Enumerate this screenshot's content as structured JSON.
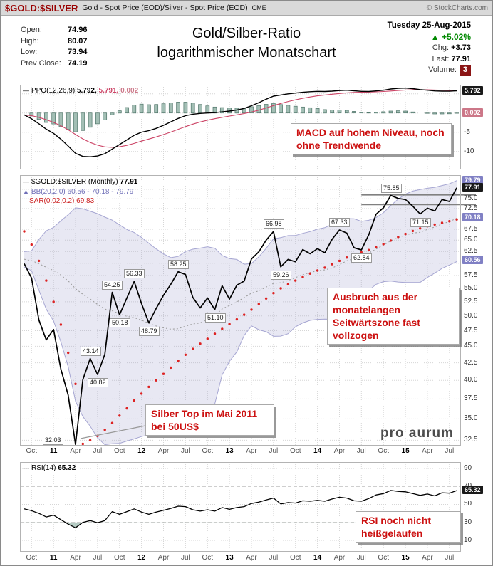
{
  "header": {
    "symbol": "$GOLD:$SILVER",
    "description": "Gold - Spot Price (EOD)/Silver - Spot Price (EOD)",
    "exchange": "CME",
    "copyright": "© StockCharts.com"
  },
  "title": {
    "line1": "Gold/Silber-Ratio",
    "line2": "logarithmischer Monatschart"
  },
  "quote": {
    "date": "Tuesday 25-Aug-2015",
    "open_label": "Open:",
    "open": "74.96",
    "high_label": "High:",
    "high": "80.07",
    "low_label": "Low:",
    "low": "73.94",
    "prev_close_label": "Prev Close:",
    "prev_close": "74.19",
    "pct_change": "+5.02%",
    "chg_label": "Chg:",
    "chg": "+3.73",
    "last_label": "Last:",
    "last": "77.91",
    "volume_label": "Volume:",
    "volume": "3"
  },
  "legends": {
    "ppo": {
      "name": "PPO(12,26,9)",
      "v1": "5.792,",
      "v2": "5.791,",
      "v3": "0.002"
    },
    "price": {
      "name": "$GOLD:$SILVER (Monthly)",
      "value": "77.91"
    },
    "bb": "BB(20,2.0) 60.56 - 70.18 - 79.79",
    "sar": "SAR(0.02,0.2) 69.83",
    "rsi": {
      "name": "RSI(14)",
      "value": "65.32"
    }
  },
  "annotations": {
    "macd": "MACD auf hohem Niveau, noch ohne Trendwende",
    "breakout": "Ausbruch aus der monatelangen Seitwärtszone fast vollzogen",
    "silver_top": "Silber Top im Mai 2011 bei 50US$",
    "rsi": "RSI noch nicht heißgelaufen"
  },
  "logo": "pro aurum",
  "icons": {
    "up_triangle": "▲",
    "legend_dash": "—",
    "bb_triangle": "▲",
    "sar_dots": "··"
  },
  "colors": {
    "symbol": "#990000",
    "gain_green": "#008800",
    "annotation_red": "#cc1111",
    "signal_line": "#cc4466",
    "histogram_fill": "#a3bfb5",
    "histogram_stroke": "#4e7468",
    "bollinger_fill": "#9595c8",
    "bollinger_edge": "#a6a6d2",
    "sar_dots": "#dd2222",
    "resistance_gray": "#808080"
  },
  "chart_data": {
    "type": "multi-panel-financial",
    "x_axis": {
      "ticks": [
        {
          "i": 1,
          "label": "Oct"
        },
        {
          "i": 4,
          "label": "11",
          "year": true
        },
        {
          "i": 7,
          "label": "Apr"
        },
        {
          "i": 10,
          "label": "Jul"
        },
        {
          "i": 13,
          "label": "Oct"
        },
        {
          "i": 16,
          "label": "12",
          "year": true
        },
        {
          "i": 19,
          "label": "Apr"
        },
        {
          "i": 22,
          "label": "Jul"
        },
        {
          "i": 25,
          "label": "Oct"
        },
        {
          "i": 28,
          "label": "13",
          "year": true
        },
        {
          "i": 31,
          "label": "Apr"
        },
        {
          "i": 34,
          "label": "Jul"
        },
        {
          "i": 37,
          "label": "Oct"
        },
        {
          "i": 40,
          "label": "14",
          "year": true
        },
        {
          "i": 43,
          "label": "Apr"
        },
        {
          "i": 46,
          "label": "Jul"
        },
        {
          "i": 49,
          "label": "Oct"
        },
        {
          "i": 52,
          "label": "15",
          "year": true
        },
        {
          "i": 55,
          "label": "Apr"
        },
        {
          "i": 58,
          "label": "Jul"
        }
      ]
    },
    "ppo_panel": {
      "type": "line",
      "ylim": [
        -14.7,
        7.37
      ],
      "signal_period": 9,
      "grid_values": [
        5,
        0,
        -5,
        -10
      ],
      "yticks": [
        {
          "label": "-5",
          "v": -5
        },
        {
          "label": "-10",
          "v": -10
        }
      ],
      "axis_boxes": [
        {
          "label": "5.792",
          "v": 5.792,
          "variant": "dark"
        },
        {
          "label": "0.002",
          "v": 0.002,
          "variant": "pink"
        }
      ],
      "ppo": [
        -0.5,
        -1.5,
        -2.8,
        -4.2,
        -5.3,
        -6.8,
        -8.6,
        -10.5,
        -11.3,
        -11.4,
        -11.2,
        -10.6,
        -9.4,
        -8.2,
        -7.0,
        -5.8,
        -5.0,
        -4.6,
        -4.0,
        -3.2,
        -2.3,
        -1.4,
        -0.7,
        -0.3,
        -0.1,
        0.0,
        0.1,
        0.3,
        0.5,
        0.8,
        1.2,
        1.9,
        2.7,
        3.6,
        4.4,
        4.7,
        5.0,
        5.2,
        5.4,
        5.55,
        5.65,
        5.6,
        5.7,
        5.85,
        5.95,
        5.8,
        5.65,
        5.6,
        5.75,
        5.95,
        6.25,
        6.45,
        6.5,
        6.35,
        6.1,
        5.95,
        5.75,
        5.7,
        5.68,
        5.79
      ]
    },
    "price_panel": {
      "type": "line",
      "scale": "log",
      "ylim": [
        31.9,
        81.4
      ],
      "bb_window": 20,
      "bb_mult": 2.0,
      "bb_prehistory": [
        64,
        63,
        62,
        61,
        60.5,
        60,
        61,
        62,
        61.5,
        61,
        60.5,
        60,
        60.5,
        61,
        61.5,
        61,
        60.5,
        60,
        60,
        60
      ],
      "close": [
        59.9,
        57.0,
        49.3,
        46.0,
        47.7,
        41.6,
        38.0,
        32.03,
        40.1,
        43.14,
        40.82,
        43.8,
        54.25,
        50.18,
        53.2,
        56.33,
        52.2,
        48.79,
        51.3,
        53.7,
        55.8,
        58.25,
        57.7,
        53.3,
        51.4,
        53.2,
        51.1,
        55.5,
        53.0,
        55.6,
        56.4,
        60.9,
        62.4,
        65.0,
        66.98,
        59.26,
        60.8,
        60.3,
        62.9,
        62.0,
        63.1,
        62.2,
        65.2,
        67.33,
        66.6,
        63.3,
        62.84,
        66.2,
        71.1,
        72.7,
        75.85,
        75.1,
        74.8,
        73.1,
        71.15,
        72.6,
        71.9,
        74.8,
        74.3,
        77.91
      ],
      "sar": [
        67.0,
        64.0,
        60.5,
        56.5,
        52.5,
        48.5,
        44.0,
        39.5,
        32.1,
        32.5,
        33.0,
        33.7,
        34.5,
        35.4,
        36.3,
        37.3,
        38.2,
        39.1,
        40.0,
        40.9,
        41.8,
        42.8,
        43.7,
        44.6,
        45.4,
        46.2,
        47.0,
        47.8,
        48.6,
        49.4,
        50.2,
        51.1,
        52.1,
        53.1,
        54.1,
        55.0,
        55.8,
        56.5,
        57.2,
        57.9,
        58.5,
        59.1,
        59.8,
        60.5,
        61.2,
        61.8,
        62.3,
        62.8,
        63.4,
        64.1,
        64.9,
        65.7,
        66.4,
        67.1,
        67.7,
        68.2,
        68.6,
        69.0,
        69.4,
        69.83
      ],
      "point_labels": [
        {
          "i": 7,
          "label": "32.03",
          "pos": "left"
        },
        {
          "i": 9,
          "label": "43.14",
          "pos": "above"
        },
        {
          "i": 10,
          "label": "40.82",
          "pos": "below"
        },
        {
          "i": 12,
          "label": "54.25",
          "pos": "above"
        },
        {
          "i": 13,
          "label": "50.18",
          "pos": "below"
        },
        {
          "i": 15,
          "label": "56.33",
          "pos": "above"
        },
        {
          "i": 17,
          "label": "48.79",
          "pos": "below"
        },
        {
          "i": 21,
          "label": "58.25",
          "pos": "above"
        },
        {
          "i": 26,
          "label": "51.10",
          "pos": "below"
        },
        {
          "i": 34,
          "label": "66.98",
          "pos": "above"
        },
        {
          "i": 35,
          "label": "59.26",
          "pos": "below"
        },
        {
          "i": 43,
          "label": "67.33",
          "pos": "above"
        },
        {
          "i": 46,
          "label": "62.84",
          "pos": "below"
        },
        {
          "i": 50,
          "label": "75.85",
          "pos": "above"
        },
        {
          "i": 54,
          "label": "71.15",
          "pos": "below"
        }
      ],
      "resistance_lines": [
        {
          "v": 76.0,
          "from_i": 46
        },
        {
          "v": 73.5,
          "from_i": 46
        }
      ],
      "grid_extra": [
        60.0,
        77.5
      ],
      "yticks": [
        {
          "label": "75.0",
          "v": 75.0
        },
        {
          "label": "72.5",
          "v": 72.5
        },
        {
          "label": "67.5",
          "v": 67.5
        },
        {
          "label": "65.0",
          "v": 65.0
        },
        {
          "label": "62.5",
          "v": 62.5
        },
        {
          "label": "57.5",
          "v": 57.5
        },
        {
          "label": "55.0",
          "v": 55.0
        },
        {
          "label": "52.5",
          "v": 52.5
        },
        {
          "label": "50.0",
          "v": 50.0
        },
        {
          "label": "47.5",
          "v": 47.5
        },
        {
          "label": "45.0",
          "v": 45.0
        },
        {
          "label": "42.5",
          "v": 42.5
        },
        {
          "label": "40.0",
          "v": 40.0
        },
        {
          "label": "37.5",
          "v": 37.5
        },
        {
          "label": "35.0",
          "v": 35.0
        },
        {
          "label": "32.5",
          "v": 32.5
        }
      ],
      "axis_boxes": [
        {
          "label": "79.79",
          "v": 79.79,
          "variant": "blue"
        },
        {
          "label": "77.91",
          "v": 77.91,
          "variant": "dark"
        },
        {
          "label": "70.18",
          "v": 70.18,
          "variant": "blue"
        },
        {
          "label": "60.56",
          "v": 60.56,
          "variant": "blue"
        }
      ]
    },
    "rsi_panel": {
      "type": "line",
      "ylim": [
        -2.7,
        97.1
      ],
      "oversold": 30,
      "overbought": 70,
      "grid_dotted": [
        90,
        50,
        10
      ],
      "grid_dashed": [
        70,
        30
      ],
      "yticks": [
        {
          "label": "90",
          "v": 90
        },
        {
          "label": "70",
          "v": 70
        },
        {
          "label": "50",
          "v": 50
        },
        {
          "label": "30",
          "v": 30
        },
        {
          "label": "10",
          "v": 10
        }
      ],
      "axis_boxes": [
        {
          "label": "65.32",
          "v": 65.32,
          "variant": "dark"
        }
      ],
      "rsi": [
        45,
        43,
        40,
        36,
        38,
        33,
        28,
        24,
        30,
        32,
        29.5,
        32,
        42,
        39,
        42,
        45,
        41.5,
        39,
        41.5,
        43.5,
        45.5,
        48,
        47.5,
        44,
        42.5,
        44,
        42.5,
        46.5,
        44.5,
        46.5,
        47.5,
        51,
        52.5,
        55,
        57,
        50.5,
        52,
        51.5,
        54,
        53.5,
        54.5,
        53.5,
        56,
        58,
        57,
        54,
        53.5,
        56.5,
        60.5,
        62,
        65.5,
        64.5,
        64,
        62,
        60,
        61.5,
        59.5,
        63,
        62.5,
        65.32
      ]
    }
  }
}
